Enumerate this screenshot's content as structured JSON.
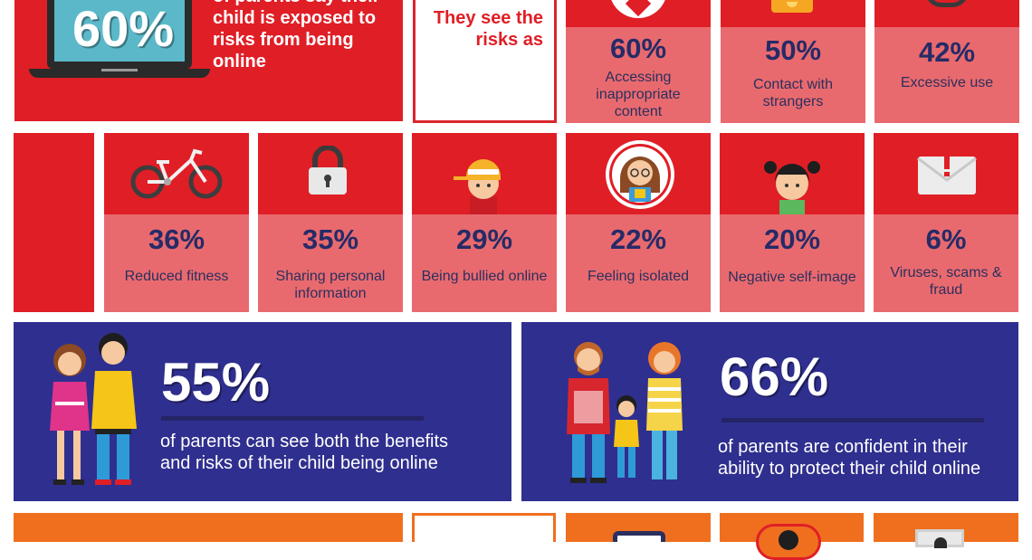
{
  "top": {
    "laptop_pct": "60%",
    "laptop_text": "of parents say their child is exposed to risks from being online",
    "see_risks": "They see the risks as"
  },
  "row1": [
    {
      "pct": "60%",
      "label": "Accessing inappropriate content",
      "icon": "warning-icon"
    },
    {
      "pct": "50%",
      "label": "Contact with strangers",
      "icon": "chat-icon"
    },
    {
      "pct": "42%",
      "label": "Excessive use",
      "icon": "clock-icon"
    }
  ],
  "row2": [
    {
      "pct": "36%",
      "label": "Reduced fitness",
      "icon": "bicycle-icon"
    },
    {
      "pct": "35%",
      "label": "Sharing personal information",
      "icon": "padlock-icon"
    },
    {
      "pct": "29%",
      "label": "Being bullied online",
      "icon": "boy-cap-icon"
    },
    {
      "pct": "22%",
      "label": "Feeling isolated",
      "icon": "girl-glasses-icon"
    },
    {
      "pct": "20%",
      "label": "Negative self-image",
      "icon": "girl-pigtails-icon"
    },
    {
      "pct": "6%",
      "label": "Viruses, scams & fraud",
      "icon": "email-alert-icon"
    }
  ],
  "benefits": {
    "pct": "55%",
    "text": "of parents can see both the benefits and risks of their child being online"
  },
  "confident": {
    "pct": "66%",
    "text": "of parents are confident in their ability to protect their child online"
  },
  "colors": {
    "red": "#e01e26",
    "pink": "#e96a6e",
    "navy": "#2f2f8f",
    "orange": "#ef6f1f",
    "pct_text": "#252b67"
  }
}
